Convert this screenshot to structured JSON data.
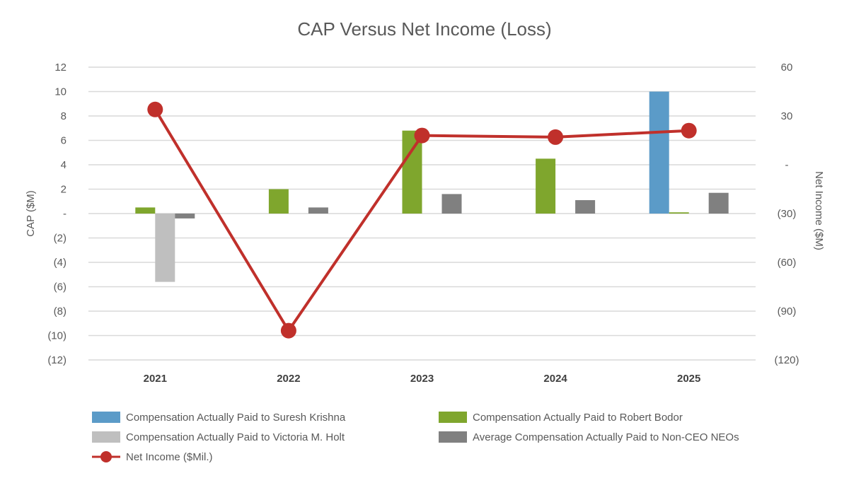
{
  "chart_data": {
    "type": "bar",
    "title": "CAP Versus Net Income (Loss)",
    "categories": [
      "2021",
      "2022",
      "2023",
      "2024",
      "2025"
    ],
    "y_left": {
      "label": "CAP ($M)",
      "ylim": [
        -12,
        12
      ],
      "tick_values": [
        12,
        10,
        8,
        6,
        4,
        2,
        0,
        -2,
        -4,
        -6,
        -8,
        -10,
        -12
      ],
      "tick_labels": [
        "12",
        "10",
        "8",
        "6",
        "4",
        "2",
        "-",
        "(2)",
        "(4)",
        "(6)",
        "(8)",
        "(10)",
        "(12)"
      ]
    },
    "y_right": {
      "label": "Net Income ($M)",
      "ylim": [
        -120,
        60
      ],
      "tick_values": [
        60,
        30,
        0,
        -30,
        -60,
        -90,
        -120
      ],
      "tick_labels": [
        "60",
        "30",
        "-",
        "(30)",
        "(60)",
        "(90)",
        "(120)"
      ]
    },
    "grid": true,
    "legend_position": "bottom",
    "series": [
      {
        "name": "Compensation Actually Paid to Suresh Krishna",
        "type": "bar",
        "axis": "left",
        "color": "#5b9bc8",
        "values": [
          null,
          null,
          null,
          null,
          10.0
        ]
      },
      {
        "name": "Compensation Actually Paid to Robert Bodor",
        "type": "bar",
        "axis": "left",
        "color": "#7fa62d",
        "values": [
          0.5,
          2.0,
          6.8,
          4.5,
          0.1
        ]
      },
      {
        "name": "Compensation Actually Paid to Victoria M. Holt",
        "type": "bar",
        "axis": "left",
        "color": "#bfbfbf",
        "values": [
          -5.6,
          null,
          null,
          null,
          null
        ]
      },
      {
        "name": "Average Compensation Actually Paid to Non-CEO NEOs",
        "type": "bar",
        "axis": "left",
        "color": "#808080",
        "values": [
          -0.4,
          0.5,
          1.6,
          1.1,
          1.7
        ]
      },
      {
        "name": "Net Income ($Mil.)",
        "type": "line",
        "axis": "right",
        "color": "#c0302b",
        "values": [
          34,
          -102,
          18,
          17,
          21
        ]
      }
    ]
  }
}
